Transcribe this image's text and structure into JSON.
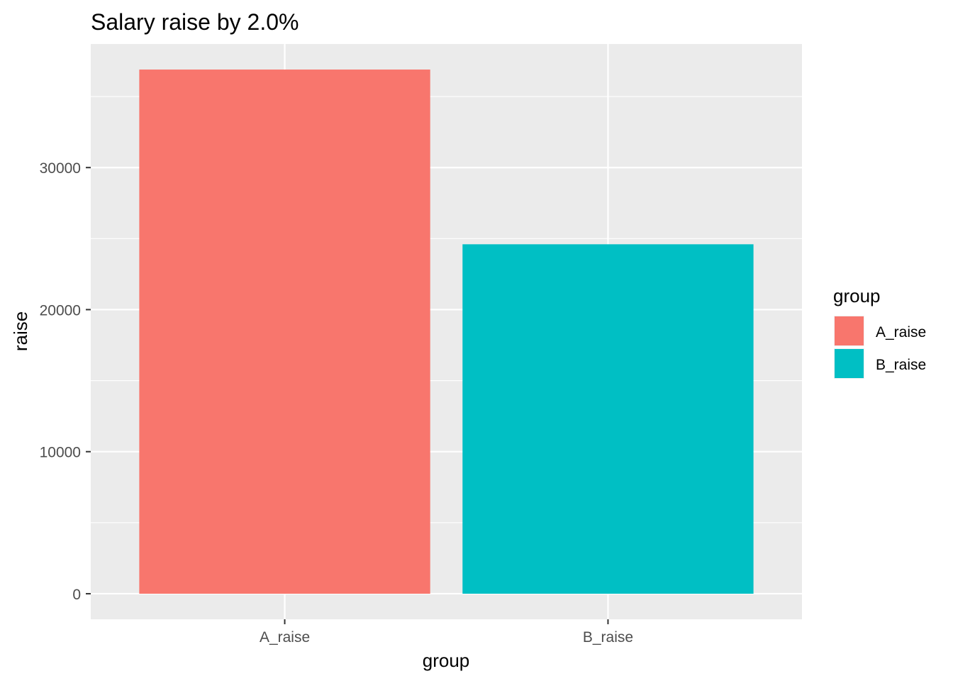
{
  "chart_data": {
    "type": "bar",
    "title": "Salary raise by 2.0%",
    "xlabel": "group",
    "ylabel": "raise",
    "categories": [
      "A_raise",
      "B_raise"
    ],
    "values": [
      36900,
      24600
    ],
    "colors": [
      "#F8766D",
      "#00BFC4"
    ],
    "ylim": [
      -1800,
      38700
    ],
    "yticks": [
      0,
      10000,
      20000,
      30000
    ],
    "grid": true,
    "panel_background": "#EBEBEB",
    "grid_color": "#FFFFFF",
    "legend": {
      "title": "group",
      "position": "right",
      "entries": [
        "A_raise",
        "B_raise"
      ]
    }
  }
}
